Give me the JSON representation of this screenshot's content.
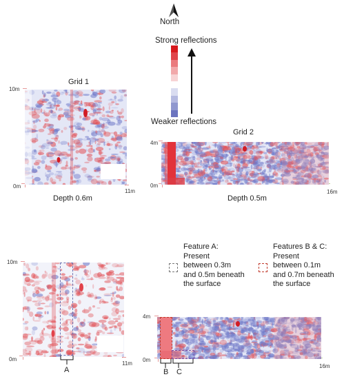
{
  "north": {
    "label": "North"
  },
  "scale": {
    "top_label": "Strong reflections",
    "bottom_label": "Weaker reflections",
    "colors": [
      "#d7191c",
      "#e0454a",
      "#ea7a7d",
      "#f1a8aa",
      "#f7d3d4",
      "#ffffff",
      "#d9dcf0",
      "#b4b9e0",
      "#8f97cf",
      "#6b74bf"
    ]
  },
  "grid1": {
    "title": "Grid 1",
    "y_top": "10m",
    "y_bottom": "0m",
    "x_right": "11m",
    "caption": "Depth 0.6m"
  },
  "grid2": {
    "title": "Grid 2",
    "y_top": "4m",
    "y_bottom": "0m",
    "x_right": "16m",
    "caption": "Depth 0.5m"
  },
  "grid1b": {
    "y_top": "10m",
    "y_bottom": "0m",
    "x_right": "11m",
    "marker": "A"
  },
  "grid2b": {
    "y_top": "4m",
    "y_bottom": "0m",
    "x_right": "16m",
    "marker_b": "B",
    "marker_c": "C"
  },
  "legend": {
    "feature_a": {
      "lines": [
        "Feature A:",
        "Present",
        "between 0.3m",
        "and 0.5m beneath",
        "the surface"
      ],
      "color": "#6b6fb0"
    },
    "feature_bc": {
      "lines": [
        "Features B & C:",
        "Present",
        "between 0.1m",
        "and 0.7m beneath",
        "the surface"
      ],
      "color": "#c0392b"
    }
  }
}
